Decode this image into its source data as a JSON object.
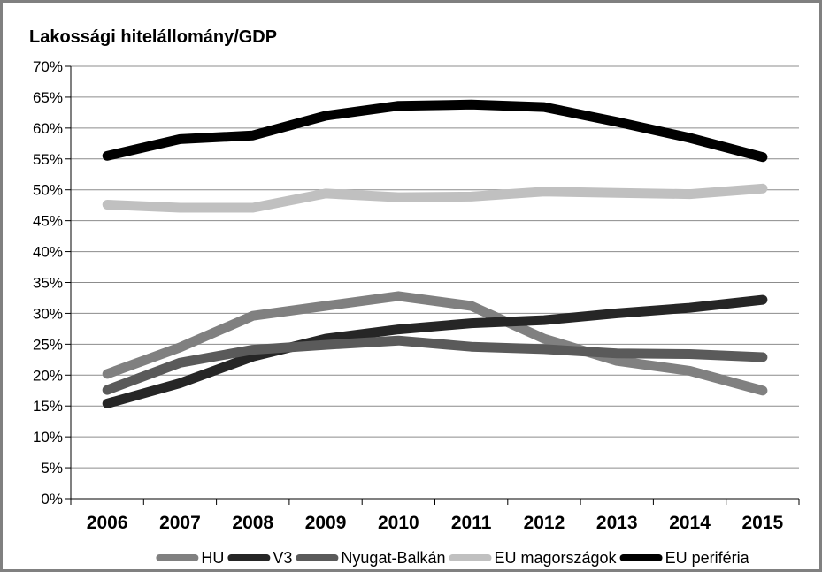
{
  "chart_data": {
    "type": "line",
    "title": "Lakossági hitelállomány/GDP",
    "xlabel": "",
    "ylabel": "",
    "x": [
      "2006",
      "2007",
      "2008",
      "2009",
      "2010",
      "2011",
      "2012",
      "2013",
      "2014",
      "2015"
    ],
    "ylim": [
      0,
      70
    ],
    "yticks": [
      "0%",
      "5%",
      "10%",
      "15%",
      "20%",
      "25%",
      "30%",
      "35%",
      "40%",
      "45%",
      "50%",
      "55%",
      "60%",
      "65%",
      "70%"
    ],
    "grid": true,
    "legend_position": "bottom",
    "series": [
      {
        "name": "HU",
        "color": "#808080",
        "values": [
          20.2,
          24.5,
          29.6,
          31.2,
          32.8,
          31.2,
          25.9,
          22.3,
          20.7,
          17.5
        ]
      },
      {
        "name": "V3",
        "color": "#262626",
        "values": [
          15.4,
          18.7,
          23.0,
          25.9,
          27.4,
          28.4,
          28.9,
          30.0,
          30.9,
          32.2
        ]
      },
      {
        "name": "Nyugat-Balkán",
        "color": "#5a5a5a",
        "values": [
          17.6,
          22.0,
          24.1,
          24.9,
          25.6,
          24.6,
          24.2,
          23.5,
          23.4,
          22.9
        ]
      },
      {
        "name": "EU magországok",
        "color": "#c0c0c0",
        "values": [
          47.6,
          47.1,
          47.1,
          49.4,
          48.8,
          48.9,
          49.7,
          49.5,
          49.3,
          50.2
        ]
      },
      {
        "name": "EU periféria",
        "color": "#000000",
        "values": [
          55.5,
          58.2,
          58.8,
          62.0,
          63.6,
          63.8,
          63.4,
          61.0,
          58.4,
          55.3
        ]
      }
    ]
  }
}
